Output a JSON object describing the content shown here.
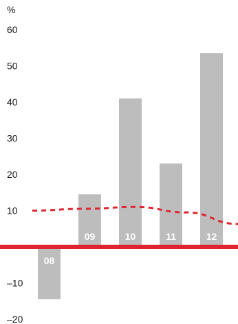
{
  "chart_data": {
    "type": "bar",
    "unit_label": "%",
    "categories": [
      "08",
      "09",
      "10",
      "11",
      "12"
    ],
    "values": [
      -14.5,
      14.5,
      41,
      23,
      53.5
    ],
    "y_ticks": [
      "60",
      "50",
      "40",
      "30",
      "20",
      "10",
      "–10",
      "–20"
    ],
    "ylim": [
      -20,
      60
    ],
    "reference_line": {
      "x": [
        0,
        2,
        4,
        6,
        8
      ],
      "y": [
        10,
        10.5,
        11,
        9.5,
        6.3
      ]
    },
    "colors": {
      "bars": "#bdbdbd",
      "zero_line": "#e0242f",
      "reference_line": "#e0242f",
      "bar_label": "#ffffff",
      "tick_text": "#1a1a1a"
    }
  }
}
